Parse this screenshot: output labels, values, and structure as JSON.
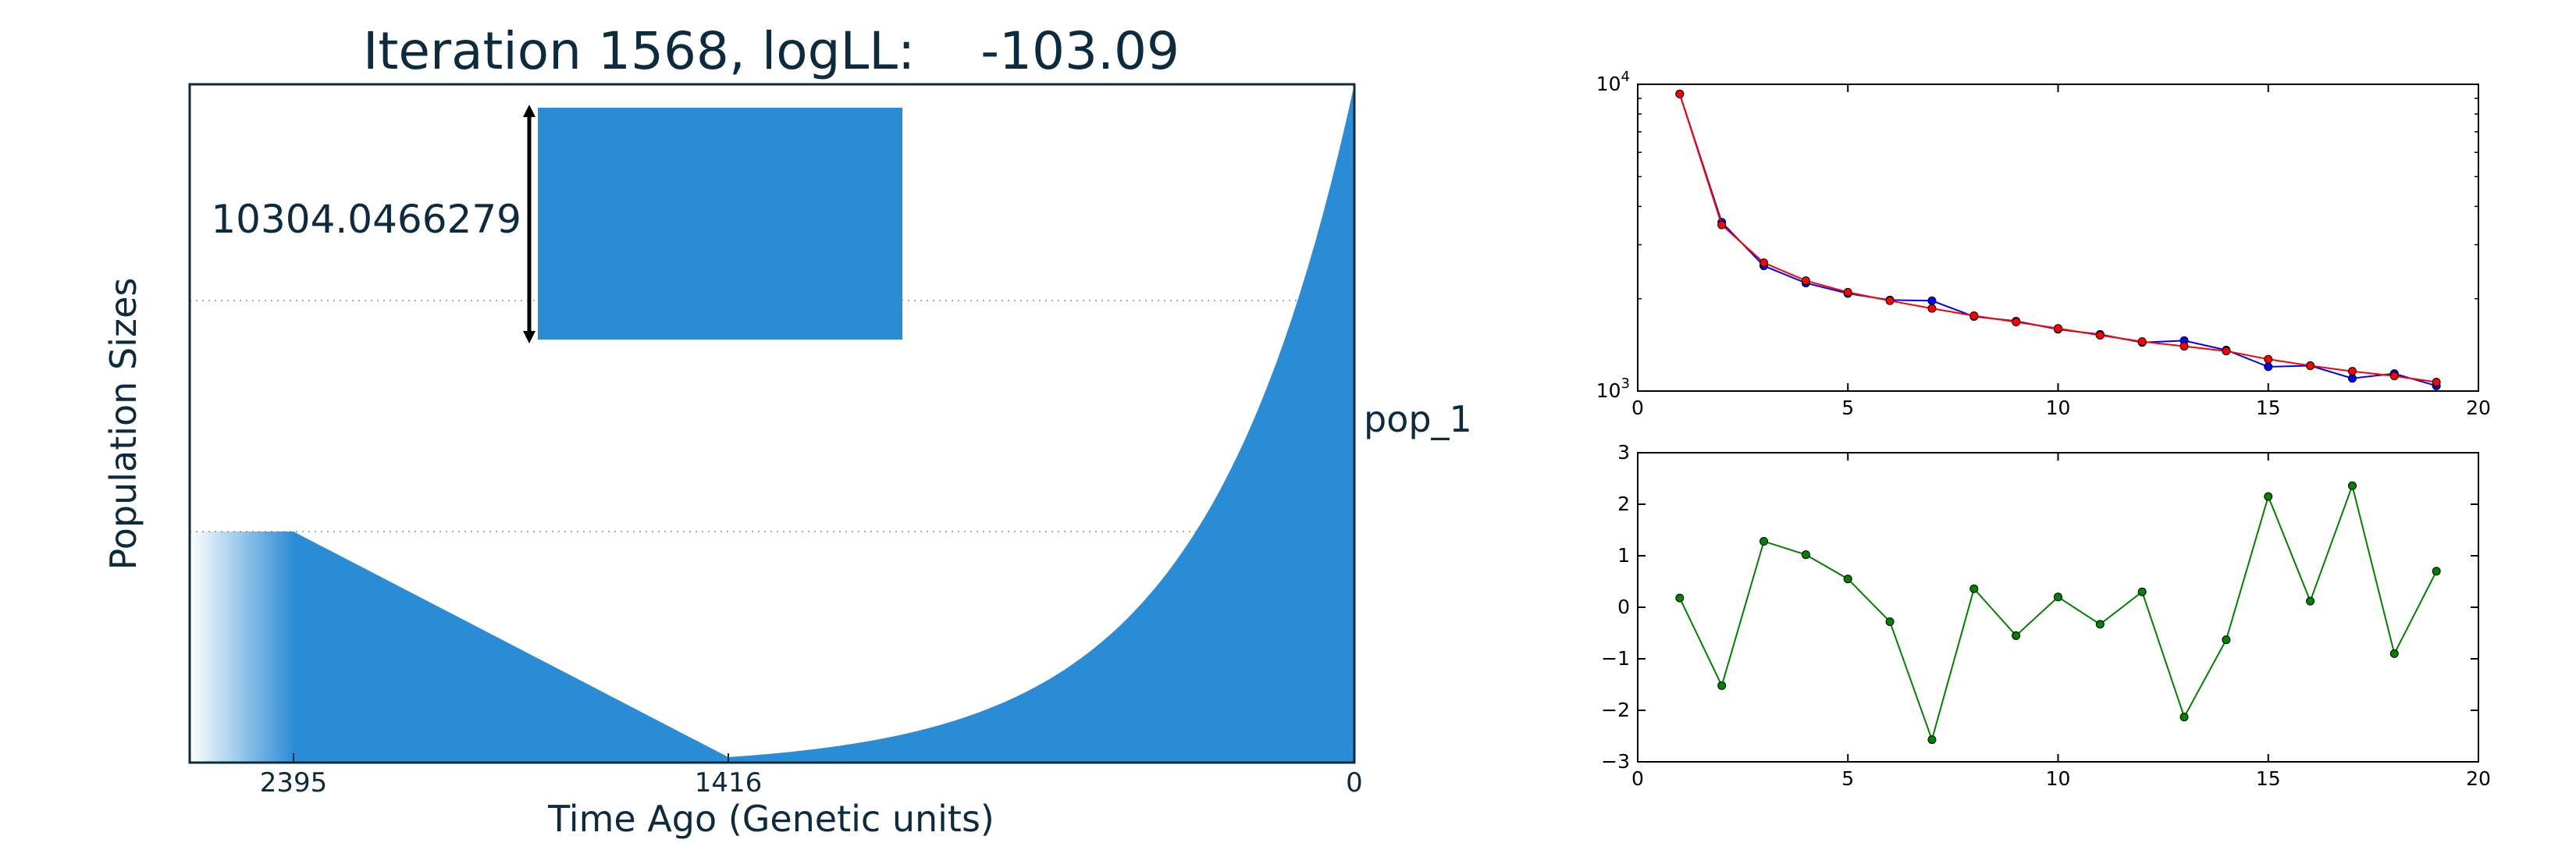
{
  "left_panel": {
    "title": "Iteration 1568, logLL:    -103.09",
    "ylabel": "Population Sizes",
    "xlabel": "Time Ago (Genetic units)",
    "population_label": "pop_1",
    "scale_bar_label": "10304.0466279",
    "scale_bar_value": 10304.0466279,
    "x_ticks": [
      "2395",
      "1416",
      "0"
    ],
    "colors": {
      "fill": "#2b8cd6",
      "text": "#0d2b3e",
      "axes": "#0d2b3e",
      "grid": "#aaaaaa"
    }
  },
  "chart_data": [
    {
      "type": "line",
      "title": "",
      "xlabel": "",
      "ylabel": "",
      "yscale": "log",
      "xlim": [
        0,
        20
      ],
      "ylim": [
        1000,
        10000
      ],
      "x_ticks": [
        "0",
        "5",
        "10",
        "15",
        "20"
      ],
      "y_ticks": [
        "10^3",
        "10^4"
      ],
      "grid": false,
      "x": [
        1,
        2,
        3,
        4,
        5,
        6,
        7,
        8,
        9,
        10,
        11,
        12,
        13,
        14,
        15,
        16,
        17,
        18,
        19
      ],
      "series": [
        {
          "color": "#0000ff",
          "values": [
            9300,
            3550,
            2560,
            2250,
            2080,
            1980,
            1970,
            1750,
            1690,
            1590,
            1530,
            1440,
            1460,
            1360,
            1200,
            1210,
            1100,
            1140,
            1040
          ]
        },
        {
          "color": "#ff0000",
          "values": [
            9300,
            3480,
            2620,
            2290,
            2100,
            1970,
            1860,
            1760,
            1680,
            1600,
            1520,
            1450,
            1400,
            1350,
            1270,
            1210,
            1160,
            1120,
            1070
          ]
        }
      ]
    },
    {
      "type": "line",
      "title": "",
      "xlabel": "",
      "ylabel": "",
      "xlim": [
        0,
        20
      ],
      "ylim": [
        -3,
        3
      ],
      "x_ticks": [
        "0",
        "5",
        "10",
        "15",
        "20"
      ],
      "y_ticks": [
        "−3",
        "−2",
        "−1",
        "0",
        "1",
        "2",
        "3"
      ],
      "grid": false,
      "x": [
        1,
        2,
        3,
        4,
        5,
        6,
        7,
        8,
        9,
        10,
        11,
        12,
        13,
        14,
        15,
        16,
        17,
        18,
        19
      ],
      "series": [
        {
          "color": "#008000",
          "values": [
            0.18,
            -1.52,
            1.28,
            1.02,
            0.55,
            -0.28,
            -2.57,
            0.36,
            -0.55,
            0.2,
            -0.33,
            0.3,
            -2.13,
            -0.63,
            2.15,
            0.12,
            2.36,
            -0.9,
            0.7
          ]
        }
      ]
    }
  ]
}
